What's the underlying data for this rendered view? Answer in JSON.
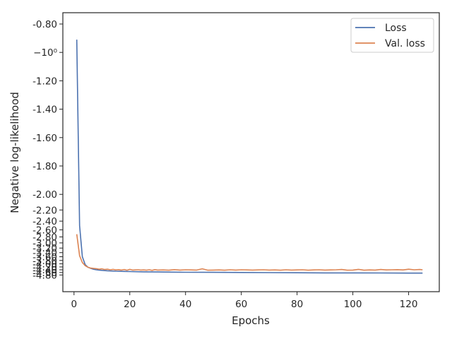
{
  "chart_data": {
    "type": "line",
    "xlabel": "Epochs",
    "ylabel": "Negative log-likelihood",
    "xlim": [
      -4,
      131
    ],
    "ylim": [
      -4.81,
      -0.72
    ],
    "grid": false,
    "legend_position": "top-right",
    "x_ticks": [
      0,
      20,
      40,
      60,
      80,
      100,
      120
    ],
    "y_ticks": [
      {
        "value": -0.8,
        "label": "-0.80"
      },
      {
        "value": -1.0,
        "label": "−10⁰"
      },
      {
        "value": -1.2,
        "label": "-1.20"
      },
      {
        "value": -1.4,
        "label": "-1.40"
      },
      {
        "value": -1.6,
        "label": "-1.60"
      },
      {
        "value": -1.8,
        "label": "-1.80"
      },
      {
        "value": -2.0,
        "label": "-2.00"
      },
      {
        "value": -2.2,
        "label": "-2.20"
      },
      {
        "value": -2.4,
        "label": "-2.40"
      },
      {
        "value": -2.6,
        "label": "-2.60"
      },
      {
        "value": -2.8,
        "label": "-2.80"
      },
      {
        "value": -3.0,
        "label": "-3.00"
      },
      {
        "value": -3.2,
        "label": "-3.20"
      },
      {
        "value": -3.4,
        "label": "-3.40"
      },
      {
        "value": -3.6,
        "label": "-3.60"
      },
      {
        "value": -3.8,
        "label": "-3.80"
      },
      {
        "value": -4.0,
        "label": "-4.00"
      },
      {
        "value": -4.2,
        "label": "-4.20"
      },
      {
        "value": -4.4,
        "label": "-4.40"
      },
      {
        "value": -4.6,
        "label": "-4.60"
      },
      {
        "value": -4.8,
        "label": "-4.80"
      }
    ],
    "series": [
      {
        "name": "Loss",
        "color": "#4c72b0",
        "x": [
          1,
          2,
          3,
          4,
          5,
          6,
          7,
          8,
          9,
          10,
          12,
          15,
          18,
          20,
          25,
          30,
          35,
          40,
          50,
          60,
          70,
          80,
          90,
          100,
          110,
          120,
          125
        ],
        "y": [
          -0.91,
          -2.5,
          -3.6,
          -4.05,
          -4.22,
          -4.3,
          -4.36,
          -4.4,
          -4.42,
          -4.44,
          -4.47,
          -4.5,
          -4.52,
          -4.53,
          -4.55,
          -4.56,
          -4.57,
          -4.58,
          -4.59,
          -4.6,
          -4.61,
          -4.62,
          -4.63,
          -4.63,
          -4.64,
          -4.65,
          -4.65
        ]
      },
      {
        "name": "Val. loss",
        "color": "#dd8452",
        "x": [
          1,
          2,
          3,
          4,
          5,
          6,
          7,
          8,
          9,
          10,
          11,
          12,
          13,
          14,
          15,
          16,
          17,
          18,
          19,
          20,
          21,
          22,
          23,
          24,
          25,
          26,
          27,
          28,
          29,
          30,
          32,
          34,
          36,
          38,
          40,
          42,
          44,
          46,
          48,
          50,
          52,
          54,
          56,
          58,
          60,
          62,
          64,
          66,
          68,
          70,
          72,
          74,
          76,
          78,
          80,
          82,
          84,
          86,
          88,
          90,
          92,
          94,
          96,
          98,
          100,
          102,
          104,
          106,
          108,
          110,
          112,
          114,
          116,
          118,
          120,
          122,
          124,
          125
        ],
        "y": [
          -2.72,
          -3.55,
          -3.92,
          -4.12,
          -4.22,
          -4.28,
          -4.3,
          -4.32,
          -4.36,
          -4.33,
          -4.38,
          -4.36,
          -4.4,
          -4.37,
          -4.41,
          -4.39,
          -4.42,
          -4.38,
          -4.43,
          -4.37,
          -4.42,
          -4.41,
          -4.4,
          -4.42,
          -4.41,
          -4.43,
          -4.4,
          -4.44,
          -4.39,
          -4.42,
          -4.41,
          -4.43,
          -4.39,
          -4.42,
          -4.4,
          -4.41,
          -4.42,
          -4.33,
          -4.43,
          -4.42,
          -4.41,
          -4.43,
          -4.4,
          -4.42,
          -4.4,
          -4.41,
          -4.42,
          -4.41,
          -4.4,
          -4.42,
          -4.41,
          -4.43,
          -4.4,
          -4.42,
          -4.41,
          -4.4,
          -4.43,
          -4.41,
          -4.4,
          -4.42,
          -4.41,
          -4.4,
          -4.38,
          -4.43,
          -4.42,
          -4.37,
          -4.43,
          -4.41,
          -4.42,
          -4.38,
          -4.41,
          -4.4,
          -4.39,
          -4.41,
          -4.36,
          -4.4,
          -4.38,
          -4.4
        ]
      }
    ]
  }
}
